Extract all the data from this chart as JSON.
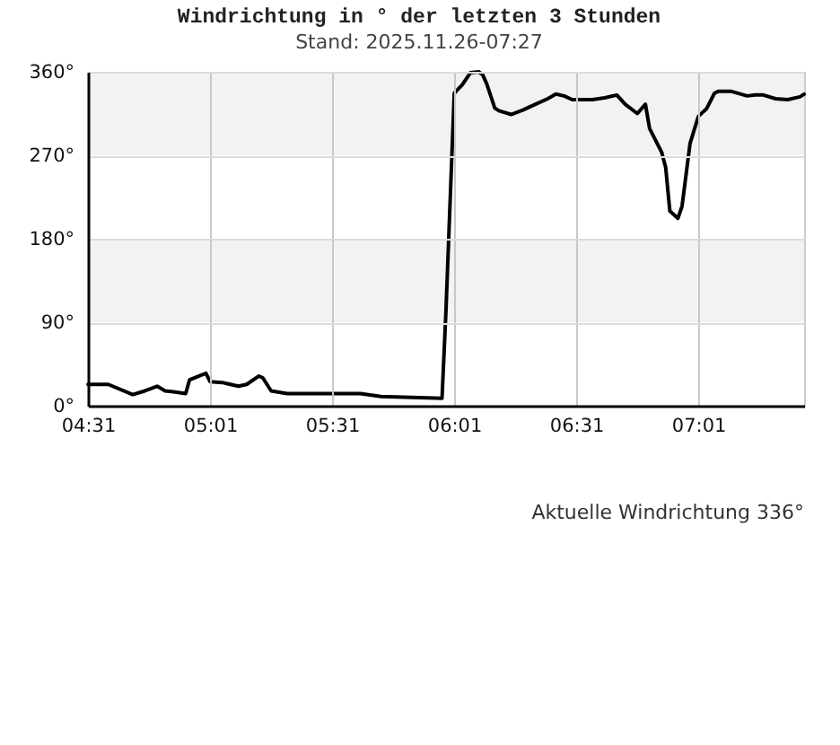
{
  "chart_data": {
    "type": "line",
    "title": "Windrichtung in ° der letzten 3 Stunden",
    "subtitle": "Stand: 2025.11.26-07:27",
    "annotations": [
      "Aktuelle Windrichtung 336°"
    ],
    "x": [
      4.517,
      4.6,
      4.7,
      4.75,
      4.8,
      4.833,
      4.867,
      4.917,
      4.933,
      5.0,
      5.017,
      5.067,
      5.133,
      5.167,
      5.217,
      5.233,
      5.267,
      5.333,
      5.633,
      5.717,
      5.967,
      5.983,
      6.017,
      6.05,
      6.083,
      6.117,
      6.133,
      6.15,
      6.183,
      6.2,
      6.25,
      6.3,
      6.35,
      6.4,
      6.433,
      6.467,
      6.5,
      6.583,
      6.633,
      6.683,
      6.717,
      6.767,
      6.8,
      6.817,
      6.867,
      6.883,
      6.9,
      6.933,
      6.95,
      6.983,
      7.017,
      7.05,
      7.083,
      7.1,
      7.15,
      7.217,
      7.25,
      7.283,
      7.333,
      7.383,
      7.433,
      7.45
    ],
    "values": [
      23,
      23,
      12,
      16,
      21,
      16,
      15,
      13,
      28,
      35,
      26,
      25,
      21,
      23,
      32,
      30,
      16,
      13,
      13,
      10,
      8,
      102,
      337,
      346,
      359,
      360,
      357,
      347,
      321,
      318,
      314,
      319,
      325,
      331,
      336,
      334,
      330,
      330,
      332,
      335,
      325,
      315,
      325,
      299,
      273,
      257,
      210,
      202,
      215,
      283,
      312,
      320,
      337,
      339,
      339,
      334,
      335,
      335,
      331,
      330,
      333,
      336
    ],
    "color": "#000000",
    "xlim": [
      4.5167,
      7.45
    ],
    "xticks": [
      {
        "value": 4.5167,
        "label": "04:31"
      },
      {
        "value": 5.0167,
        "label": "05:01"
      },
      {
        "value": 5.5167,
        "label": "05:31"
      },
      {
        "value": 6.0167,
        "label": "06:01"
      },
      {
        "value": 6.5167,
        "label": "06:31"
      },
      {
        "value": 7.0167,
        "label": "07:01"
      }
    ],
    "ylim": [
      0,
      360
    ],
    "yticks": [
      {
        "value": 0,
        "label": "0°"
      },
      {
        "value": 90,
        "label": "90°"
      },
      {
        "value": 180,
        "label": "180°"
      },
      {
        "value": 270,
        "label": "270°"
      },
      {
        "value": 360,
        "label": "360°"
      }
    ],
    "bands": [
      {
        "axis": "y",
        "from": 270,
        "to": 360,
        "color": "#f2f2f2"
      },
      {
        "axis": "y",
        "from": 90,
        "to": 180,
        "color": "#f2f2f2"
      }
    ],
    "grid": true
  }
}
